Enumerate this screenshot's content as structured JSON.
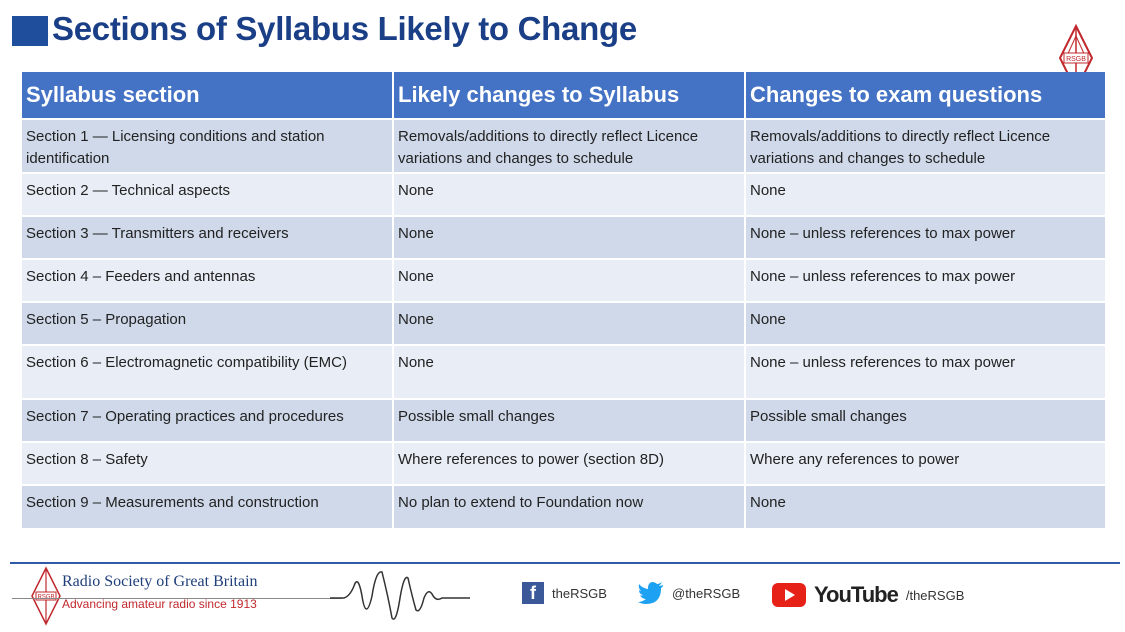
{
  "slide": {
    "title": "Sections of Syllabus Likely to Change"
  },
  "table": {
    "headers": [
      "Syllabus section",
      "Likely changes to Syllabus",
      "Changes to exam questions"
    ],
    "rows": [
      [
        "Section 1 — Licensing conditions and station identification",
        "Removals/additions to directly reflect Licence variations and changes to schedule",
        "Removals/additions to directly reflect Licence variations and changes to schedule"
      ],
      [
        "Section 2 — Technical aspects",
        "None",
        "None"
      ],
      [
        "Section 3 — Transmitters and receivers",
        "None",
        "None – unless references to max power"
      ],
      [
        "Section 4 – Feeders and antennas",
        "None",
        "None – unless references to max power"
      ],
      [
        "Section 5 – Propagation",
        "None",
        "None"
      ],
      [
        "Section 6 – Electromagnetic compatibility (EMC)",
        "None",
        "None – unless references to max power"
      ],
      [
        "Section 7 – Operating practices and procedures",
        "Possible small changes",
        "Possible small changes"
      ],
      [
        "Section 8 – Safety",
        "Where references to power (section 8D)",
        "Where any references to power"
      ],
      [
        "Section 9 – Measurements and construction",
        "No plan to extend to Foundation now",
        "None"
      ]
    ]
  },
  "footer": {
    "org_name": "Radio Society of Great Britain",
    "org_tagline": "Advancing amateur radio since 1913",
    "logo_text": "RSGB",
    "facebook": "theRSGB",
    "twitter": "@theRSGB",
    "youtube_word": "YouTube",
    "youtube": "/theRSGB"
  },
  "colors": {
    "title": "#1a3f87",
    "header_bg": "#4472c4",
    "row_dark": "#cfd9ea",
    "row_light": "#e8edf6",
    "brand_red": "#c0282d"
  },
  "icons": [
    "rsgb-logo-icon",
    "facebook-icon",
    "twitter-icon",
    "youtube-icon",
    "waveform-icon"
  ]
}
